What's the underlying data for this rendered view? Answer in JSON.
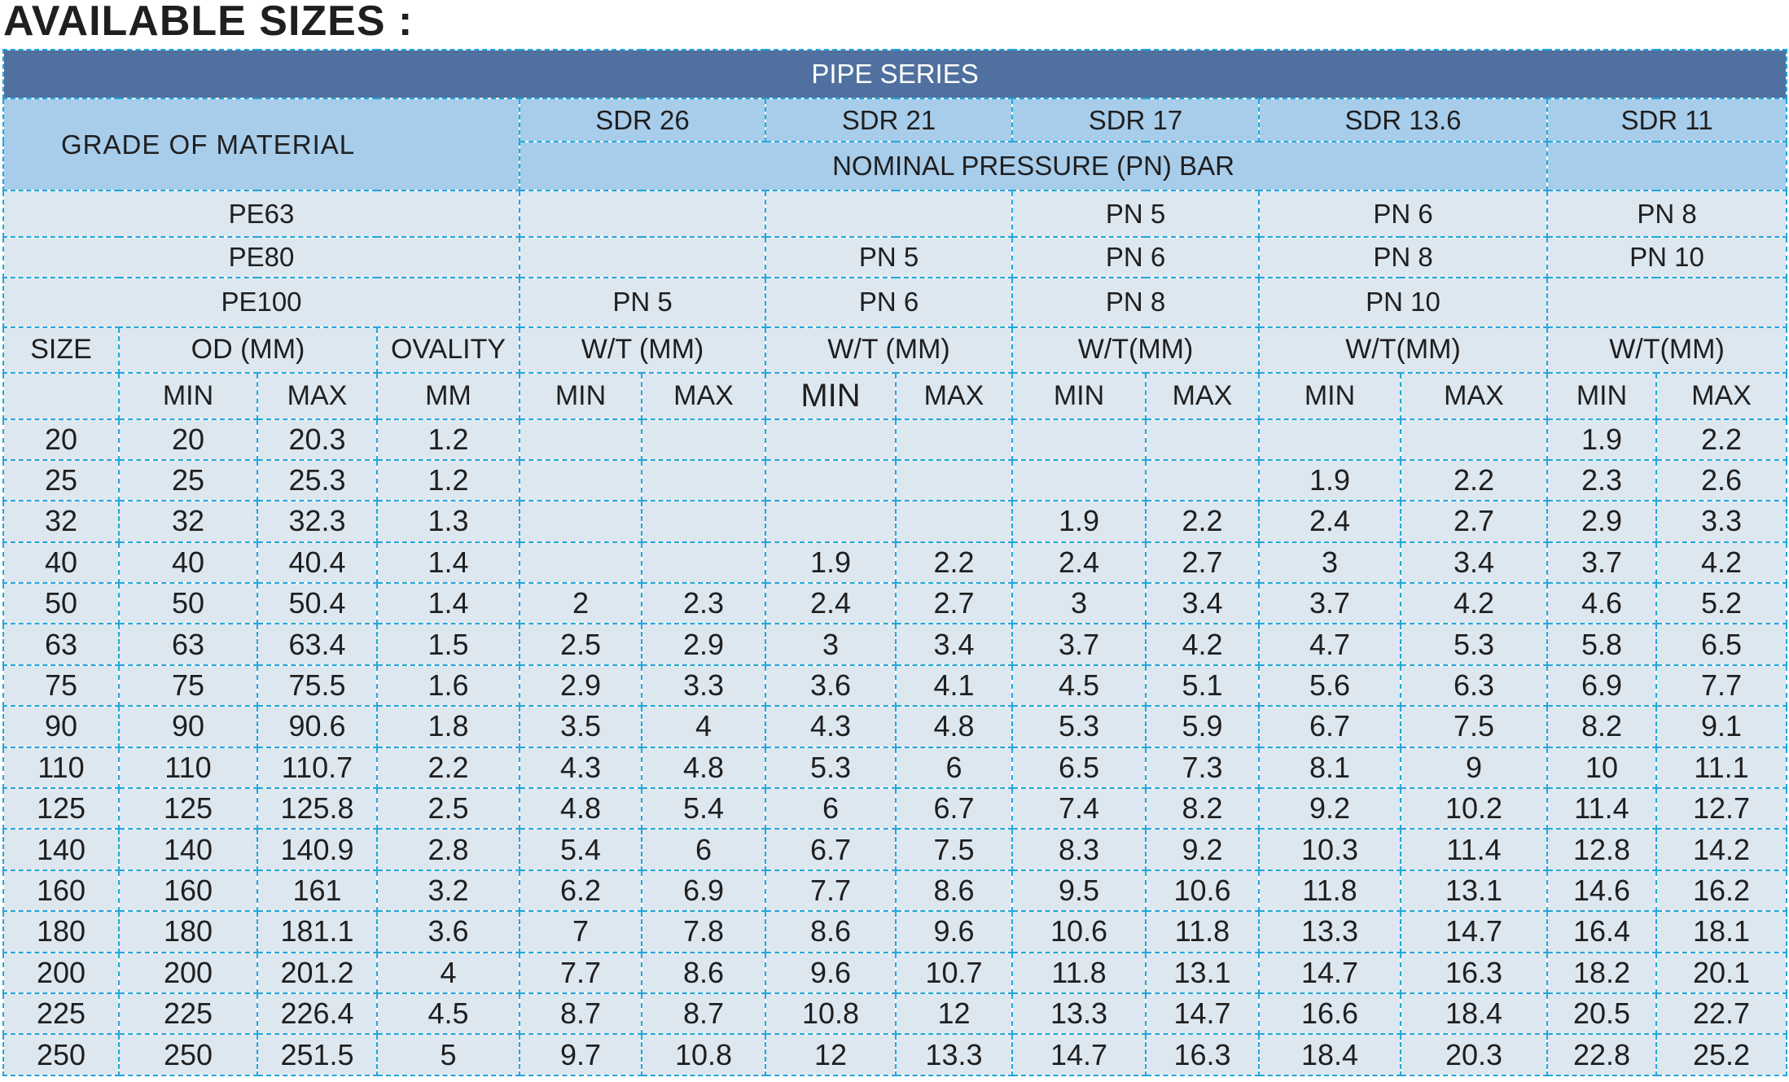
{
  "heading": "AVAILABLE SIZES :",
  "pipe_series": "PIPE SERIES",
  "grade_of_material": "GRADE OF MATERIAL",
  "sdr": [
    "SDR 26",
    "SDR 21",
    "SDR 17",
    "SDR 13.6",
    "SDR 11"
  ],
  "nominal_pressure": "NOMINAL PRESSURE (PN) BAR",
  "materials": [
    {
      "name": "PE63",
      "pn": [
        "",
        "",
        "PN 5",
        "PN 6",
        "PN 8"
      ]
    },
    {
      "name": "PE80",
      "pn": [
        "",
        "PN 5",
        "PN 6",
        "PN 8",
        "PN 10"
      ]
    },
    {
      "name": "PE100",
      "pn": [
        "PN 5",
        "PN 6",
        "PN 8",
        "PN 10",
        ""
      ]
    }
  ],
  "columns": {
    "size": "SIZE",
    "od": "OD (MM)",
    "ovality": "OVALITY",
    "wt": [
      "W/T (MM)",
      "W/T (MM)",
      "W/T(MM)",
      "W/T(MM)",
      "W/T(MM)"
    ],
    "min": "MIN",
    "max": "MAX",
    "mm": "MM"
  },
  "rows": [
    [
      "20",
      "20",
      "20.3",
      "1.2",
      "",
      "",
      "",
      "",
      "",
      "",
      "",
      "",
      "1.9",
      "2.2"
    ],
    [
      "25",
      "25",
      "25.3",
      "1.2",
      "",
      "",
      "",
      "",
      "",
      "",
      "1.9",
      "2.2",
      "2.3",
      "2.6"
    ],
    [
      "32",
      "32",
      "32.3",
      "1.3",
      "",
      "",
      "",
      "",
      "1.9",
      "2.2",
      "2.4",
      "2.7",
      "2.9",
      "3.3"
    ],
    [
      "40",
      "40",
      "40.4",
      "1.4",
      "",
      "",
      "1.9",
      "2.2",
      "2.4",
      "2.7",
      "3",
      "3.4",
      "3.7",
      "4.2"
    ],
    [
      "50",
      "50",
      "50.4",
      "1.4",
      "2",
      "2.3",
      "2.4",
      "2.7",
      "3",
      "3.4",
      "3.7",
      "4.2",
      "4.6",
      "5.2"
    ],
    [
      "63",
      "63",
      "63.4",
      "1.5",
      "2.5",
      "2.9",
      "3",
      "3.4",
      "3.7",
      "4.2",
      "4.7",
      "5.3",
      "5.8",
      "6.5"
    ],
    [
      "75",
      "75",
      "75.5",
      "1.6",
      "2.9",
      "3.3",
      "3.6",
      "4.1",
      "4.5",
      "5.1",
      "5.6",
      "6.3",
      "6.9",
      "7.7"
    ],
    [
      "90",
      "90",
      "90.6",
      "1.8",
      "3.5",
      "4",
      "4.3",
      "4.8",
      "5.3",
      "5.9",
      "6.7",
      "7.5",
      "8.2",
      "9.1"
    ],
    [
      "110",
      "110",
      "110.7",
      "2.2",
      "4.3",
      "4.8",
      "5.3",
      "6",
      "6.5",
      "7.3",
      "8.1",
      "9",
      "10",
      "11.1"
    ],
    [
      "125",
      "125",
      "125.8",
      "2.5",
      "4.8",
      "5.4",
      "6",
      "6.7",
      "7.4",
      "8.2",
      "9.2",
      "10.2",
      "11.4",
      "12.7"
    ],
    [
      "140",
      "140",
      "140.9",
      "2.8",
      "5.4",
      "6",
      "6.7",
      "7.5",
      "8.3",
      "9.2",
      "10.3",
      "11.4",
      "12.8",
      "14.2"
    ],
    [
      "160",
      "160",
      "161",
      "3.2",
      "6.2",
      "6.9",
      "7.7",
      "8.6",
      "9.5",
      "10.6",
      "11.8",
      "13.1",
      "14.6",
      "16.2"
    ],
    [
      "180",
      "180",
      "181.1",
      "3.6",
      "7",
      "7.8",
      "8.6",
      "9.6",
      "10.6",
      "11.8",
      "13.3",
      "14.7",
      "16.4",
      "18.1"
    ],
    [
      "200",
      "200",
      "201.2",
      "4",
      "7.7",
      "8.6",
      "9.6",
      "10.7",
      "11.8",
      "13.1",
      "14.7",
      "16.3",
      "18.2",
      "20.1"
    ],
    [
      "225",
      "225",
      "226.4",
      "4.5",
      "8.7",
      "8.7",
      "10.8",
      "12",
      "13.3",
      "14.7",
      "16.6",
      "18.4",
      "20.5",
      "22.7"
    ],
    [
      "250",
      "250",
      "251.5",
      "5",
      "9.7",
      "10.8",
      "12",
      "13.3",
      "14.7",
      "16.3",
      "18.4",
      "20.3",
      "22.8",
      "25.2"
    ]
  ],
  "colors": {
    "series_bar": "#50719f",
    "header_blue": "#a8cdeb",
    "cell_bg": "#dde7f0",
    "border": "#22a7db"
  }
}
